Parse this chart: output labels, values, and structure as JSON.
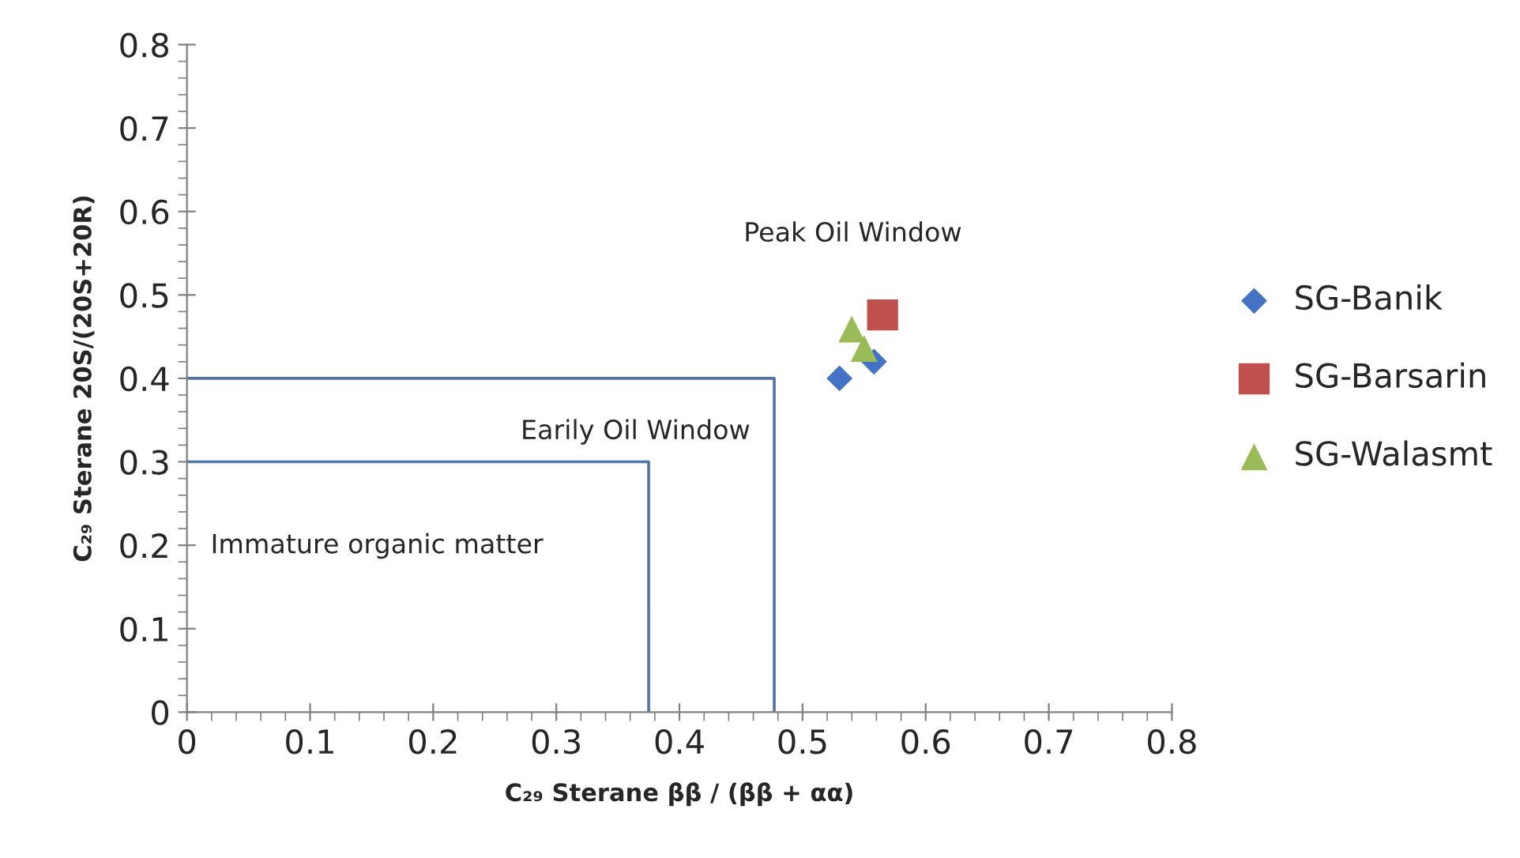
{
  "chart_data": {
    "type": "scatter",
    "xlabel": "C₂₉ Sterane ββ / (ββ + αα)",
    "ylabel": "C₂₉ Sterane 20S/(20S+20R)",
    "xlim": [
      0,
      0.8
    ],
    "ylim": [
      0,
      0.8
    ],
    "xticks": [
      {
        "value": 0,
        "label": "0"
      },
      0.1,
      0.2,
      0.3,
      0.4,
      0.5,
      0.6,
      0.7,
      0.8
    ],
    "yticks": [
      {
        "value": 0,
        "label": "0"
      },
      0.1,
      0.2,
      0.3,
      0.4,
      0.5,
      0.6,
      0.7,
      0.8
    ],
    "grid": false,
    "legend": "right",
    "series": [
      {
        "type": "line",
        "color": "#4f74a8",
        "x": [
          0,
          0.375,
          0.375
        ],
        "values": [
          0.3,
          0.3,
          0
        ],
        "marker": "none"
      },
      {
        "type": "line",
        "color": "#4f74a8",
        "x": [
          0,
          0.477,
          0.477
        ],
        "values": [
          0.4,
          0.4,
          0
        ],
        "marker": "none"
      },
      {
        "name": "SG-Banik",
        "color": "#4472c4",
        "marker": "diamond",
        "x": [
          0.53,
          0.558
        ],
        "values": [
          0.4,
          0.42
        ]
      },
      {
        "name": "SG-Barsarin",
        "color": "#c0504d",
        "marker": "square",
        "x": [
          0.565
        ],
        "values": [
          0.476
        ]
      },
      {
        "name": "SG-Walasmt",
        "color": "#9bbb59",
        "marker": "triangle",
        "x": [
          0.54,
          0.55
        ],
        "values": [
          0.459,
          0.436
        ]
      }
    ],
    "annotations": [
      "Peak Oil Window",
      "Earily Oil Window",
      "Immature organic matter"
    ]
  }
}
